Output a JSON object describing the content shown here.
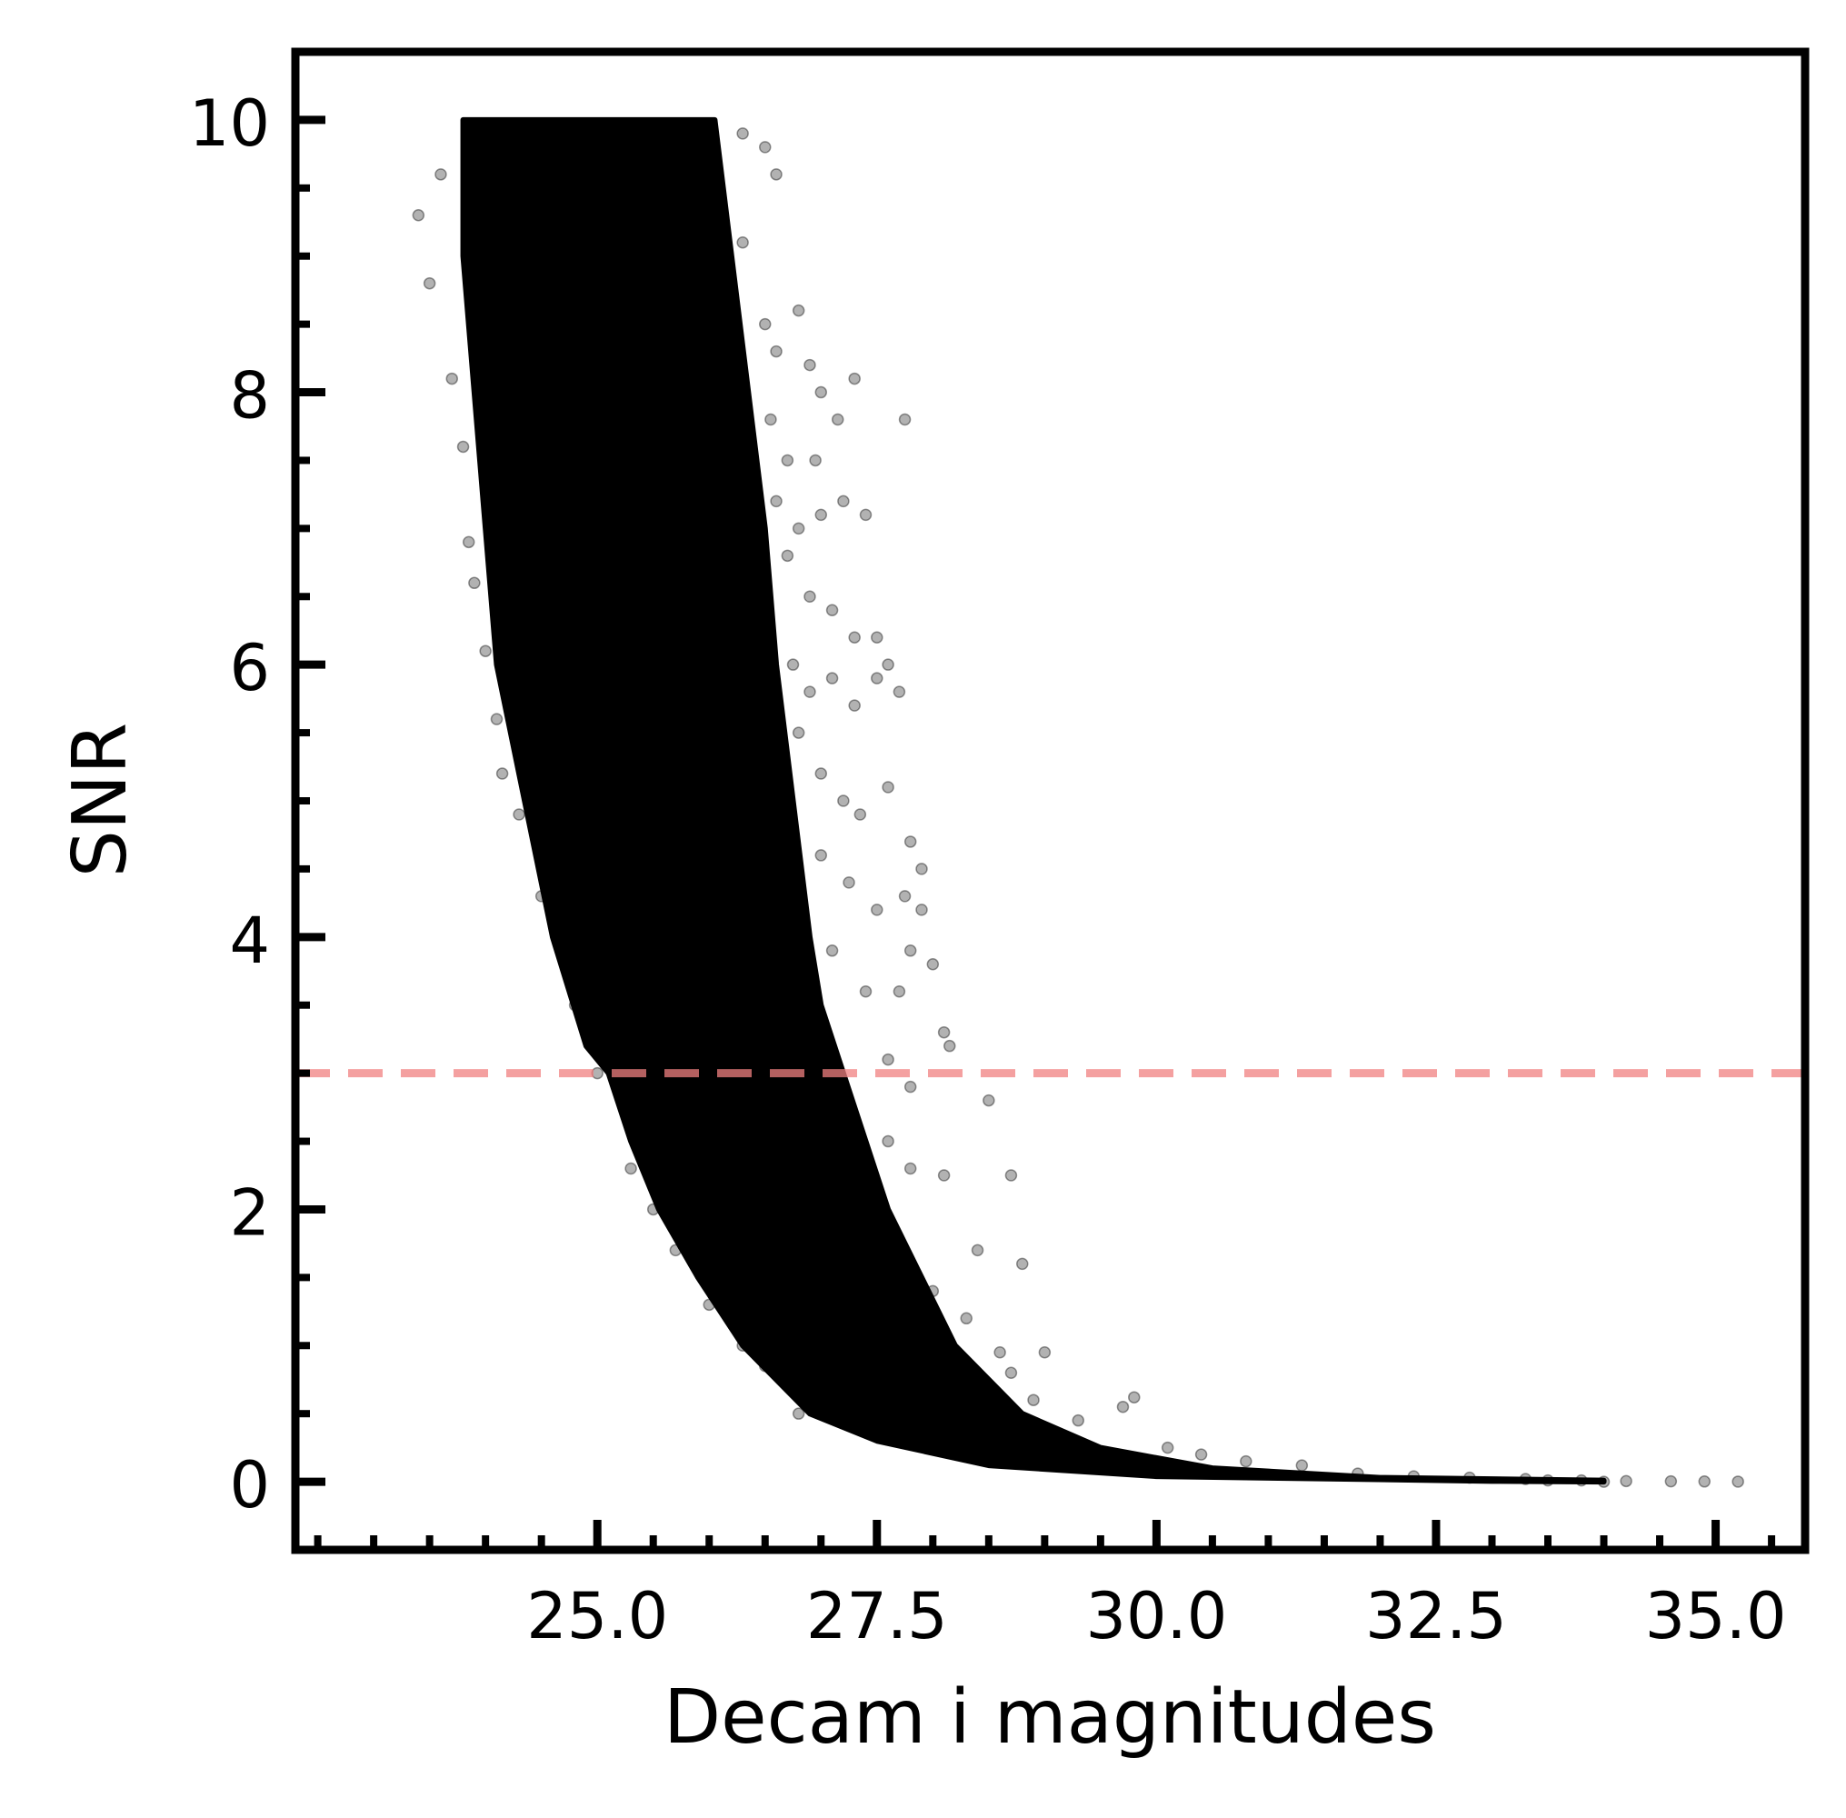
{
  "chart_data": {
    "type": "scatter",
    "title": "",
    "xlabel": "Decam i magnitudes",
    "ylabel": "SNR",
    "xlim": [
      22.3,
      35.8
    ],
    "ylim": [
      -0.5,
      10.5
    ],
    "x_ticks": [
      {
        "value": 25.0,
        "label": "25.0"
      },
      {
        "value": 27.5,
        "label": "27.5"
      },
      {
        "value": 30.0,
        "label": "30.0"
      },
      {
        "value": 32.5,
        "label": "32.5"
      },
      {
        "value": 35.0,
        "label": "35.0"
      }
    ],
    "y_ticks": [
      {
        "value": 0,
        "label": "0"
      },
      {
        "value": 2,
        "label": "2"
      },
      {
        "value": 4,
        "label": "4"
      },
      {
        "value": 6,
        "label": "6"
      },
      {
        "value": 8,
        "label": "8"
      },
      {
        "value": 10,
        "label": "10"
      }
    ],
    "x_minor_step": 0.5,
    "y_minor_step": 0.5,
    "grid": false,
    "series": [
      {
        "color": "#000000",
        "opacity": 0.3,
        "dense_band": {
          "upper_edge": [
            [
              26.05,
              10
            ],
            [
              26.2,
              9.0
            ],
            [
              26.35,
              8.0
            ],
            [
              26.5,
              7.0
            ],
            [
              26.6,
              6.0
            ],
            [
              26.75,
              5.0
            ],
            [
              26.9,
              4.0
            ],
            [
              27.0,
              3.5
            ],
            [
              27.2,
              3.0
            ],
            [
              27.4,
              2.5
            ],
            [
              27.6,
              2.0
            ],
            [
              27.9,
              1.5
            ],
            [
              28.2,
              1.0
            ],
            [
              28.8,
              0.5
            ],
            [
              29.5,
              0.25
            ],
            [
              30.5,
              0.1
            ],
            [
              32.0,
              0.03
            ],
            [
              34.0,
              0.01
            ]
          ],
          "lower_edge": [
            [
              23.8,
              10
            ],
            [
              23.8,
              9.0
            ],
            [
              23.9,
              8.0
            ],
            [
              24.0,
              7.0
            ],
            [
              24.1,
              6.0
            ],
            [
              24.35,
              5.0
            ],
            [
              24.6,
              4.0
            ],
            [
              24.9,
              3.2
            ],
            [
              25.1,
              3.0
            ],
            [
              25.3,
              2.5
            ],
            [
              25.55,
              2.0
            ],
            [
              25.9,
              1.5
            ],
            [
              26.3,
              1.0
            ],
            [
              26.9,
              0.5
            ],
            [
              27.5,
              0.3
            ],
            [
              28.5,
              0.12
            ],
            [
              30.0,
              0.04
            ],
            [
              33.0,
              0.005
            ],
            [
              34.0,
              0.0
            ]
          ]
        },
        "points": [
          [
            23.4,
            9.3
          ],
          [
            23.5,
            8.8
          ],
          [
            23.6,
            9.6
          ],
          [
            23.7,
            8.1
          ],
          [
            23.8,
            7.6
          ],
          [
            23.85,
            6.9
          ],
          [
            23.9,
            6.6
          ],
          [
            24.0,
            6.1
          ],
          [
            24.1,
            5.6
          ],
          [
            24.15,
            5.2
          ],
          [
            24.3,
            4.9
          ],
          [
            24.5,
            4.3
          ],
          [
            24.8,
            3.5
          ],
          [
            25.0,
            3.0
          ],
          [
            25.3,
            2.3
          ],
          [
            25.5,
            2.0
          ],
          [
            25.7,
            1.7
          ],
          [
            26.0,
            1.3
          ],
          [
            26.3,
            1.0
          ],
          [
            26.5,
            0.85
          ],
          [
            26.8,
            0.5
          ],
          [
            26.3,
            9.9
          ],
          [
            26.5,
            9.8
          ],
          [
            26.6,
            9.6
          ],
          [
            26.3,
            9.1
          ],
          [
            26.5,
            8.5
          ],
          [
            26.6,
            8.3
          ],
          [
            26.8,
            8.6
          ],
          [
            26.9,
            8.2
          ],
          [
            27.0,
            8.0
          ],
          [
            27.15,
            7.8
          ],
          [
            27.3,
            8.1
          ],
          [
            26.55,
            7.8
          ],
          [
            26.7,
            7.5
          ],
          [
            26.95,
            7.5
          ],
          [
            26.6,
            7.2
          ],
          [
            26.8,
            7.0
          ],
          [
            27.0,
            7.1
          ],
          [
            27.2,
            7.2
          ],
          [
            27.4,
            7.1
          ],
          [
            26.7,
            6.8
          ],
          [
            26.9,
            6.5
          ],
          [
            27.1,
            6.4
          ],
          [
            27.3,
            6.2
          ],
          [
            27.5,
            6.2
          ],
          [
            27.6,
            6.0
          ],
          [
            26.75,
            6.0
          ],
          [
            26.9,
            5.8
          ],
          [
            27.1,
            5.9
          ],
          [
            27.3,
            5.7
          ],
          [
            27.5,
            5.9
          ],
          [
            27.7,
            5.8
          ],
          [
            27.75,
            7.8
          ],
          [
            26.8,
            5.5
          ],
          [
            27.0,
            5.2
          ],
          [
            27.2,
            5.0
          ],
          [
            27.35,
            4.9
          ],
          [
            27.6,
            5.1
          ],
          [
            27.8,
            4.7
          ],
          [
            27.9,
            4.5
          ],
          [
            27.0,
            4.6
          ],
          [
            27.25,
            4.4
          ],
          [
            27.5,
            4.2
          ],
          [
            27.75,
            4.3
          ],
          [
            27.9,
            4.2
          ],
          [
            27.8,
            3.9
          ],
          [
            28.0,
            3.8
          ],
          [
            27.1,
            3.9
          ],
          [
            27.4,
            3.6
          ],
          [
            27.7,
            3.6
          ],
          [
            28.1,
            3.3
          ],
          [
            28.15,
            3.2
          ],
          [
            27.6,
            3.1
          ],
          [
            27.8,
            2.9
          ],
          [
            28.5,
            2.8
          ],
          [
            27.6,
            2.5
          ],
          [
            27.8,
            2.3
          ],
          [
            28.1,
            2.25
          ],
          [
            28.7,
            2.25
          ],
          [
            28.4,
            1.7
          ],
          [
            28.8,
            1.6
          ],
          [
            28.0,
            1.4
          ],
          [
            28.3,
            1.2
          ],
          [
            28.6,
            0.95
          ],
          [
            29.0,
            0.95
          ],
          [
            28.7,
            0.8
          ],
          [
            28.9,
            0.6
          ],
          [
            29.3,
            0.45
          ],
          [
            29.7,
            0.55
          ],
          [
            29.8,
            0.62
          ],
          [
            30.1,
            0.25
          ],
          [
            30.4,
            0.2
          ],
          [
            30.8,
            0.15
          ],
          [
            31.3,
            0.12
          ],
          [
            31.8,
            0.06
          ],
          [
            32.3,
            0.04
          ],
          [
            32.8,
            0.03
          ],
          [
            33.3,
            0.02
          ],
          [
            33.8,
            0.01
          ],
          [
            34.2,
            0.005
          ],
          [
            34.6,
            0.003
          ],
          [
            34.9,
            0.002
          ],
          [
            35.2,
            0.001
          ],
          [
            33.5,
            0.01
          ],
          [
            34.0,
            0.0
          ]
        ]
      }
    ],
    "annotations": [
      {
        "type": "hline",
        "y": 3.0,
        "style": "dashed",
        "color": "#f08080"
      }
    ]
  }
}
